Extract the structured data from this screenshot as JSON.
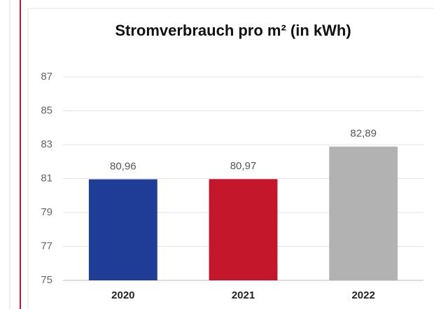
{
  "chart_data": {
    "type": "bar",
    "title": "Stromverbrauch pro m² (in kWh)",
    "categories": [
      "2020",
      "2021",
      "2022"
    ],
    "values": [
      80.96,
      80.97,
      82.89
    ],
    "value_labels": [
      "80,96",
      "80,97",
      "82,89"
    ],
    "colors": [
      "#1f3d96",
      "#c4172b",
      "#b1b2b1"
    ],
    "ylim": [
      75,
      87
    ],
    "yticks": [
      75,
      77,
      79,
      81,
      83,
      85,
      87
    ],
    "grid": true
  }
}
